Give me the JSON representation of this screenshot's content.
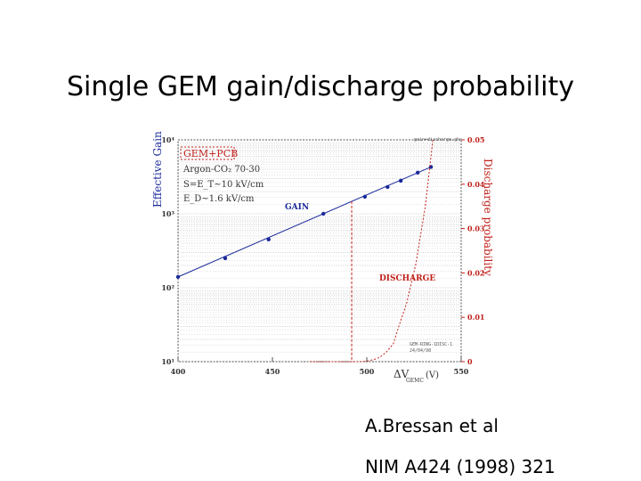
{
  "slide": {
    "title": "Single GEM gain/discharge probability",
    "reference_line1": "A.Bressan et al",
    "reference_line2": "NIM A424 (1998) 321"
  },
  "chart_data": {
    "type": "line",
    "title": "",
    "xlabel_prefix": "ΔV",
    "xlabel_sub": "GEMC",
    "xlabel_unit": "(V)",
    "ylabel_left": "Effective Gain",
    "ylabel_right": "Discharge probability",
    "x_ticks": [
      "400",
      "450",
      "500",
      "550"
    ],
    "xlim": [
      400,
      550
    ],
    "y_left_log": true,
    "y_left_ticks": [
      "10⁴",
      "10³",
      "10²",
      "10¹"
    ],
    "ylim_left": [
      10,
      10000
    ],
    "y_right_ticks": [
      "0.05",
      "0.04",
      "0.03",
      "0.02",
      "0.01",
      "0"
    ],
    "ylim_right": [
      0,
      0.05
    ],
    "grid": "horizontal",
    "top_note": "gain+discharge.ghs",
    "bottom_note": "GEM-RING-1DISC-1\n24/04/98",
    "inset_lines": [
      "GEM+PCB",
      "Argon-CO₂ 70-30",
      "S=E_T~10 kV/cm",
      "E_D~1.6 kV/cm"
    ],
    "colors": {
      "gain": "#1a2a9a",
      "discharge": "#c0201a",
      "axis": "#555555",
      "grid": "#888888"
    },
    "series": [
      {
        "name": "GAIN",
        "axis": "left",
        "x": [
          400,
          425,
          448,
          477,
          499,
          511,
          518,
          527,
          534
        ],
        "y": [
          140,
          250,
          450,
          1000,
          1700,
          2300,
          2800,
          3600,
          4300
        ]
      },
      {
        "name": "DISCHARGE",
        "axis": "right",
        "x": [
          470,
          480,
          490,
          494,
          498,
          501,
          504,
          507,
          510,
          514,
          517,
          521,
          526,
          531,
          535
        ],
        "y": [
          0,
          0,
          0,
          0,
          0,
          0.0002,
          0.0005,
          0.001,
          0.002,
          0.004,
          0.008,
          0.013,
          0.022,
          0.035,
          0.05
        ]
      }
    ],
    "discharge_threshold_x": 492
  }
}
